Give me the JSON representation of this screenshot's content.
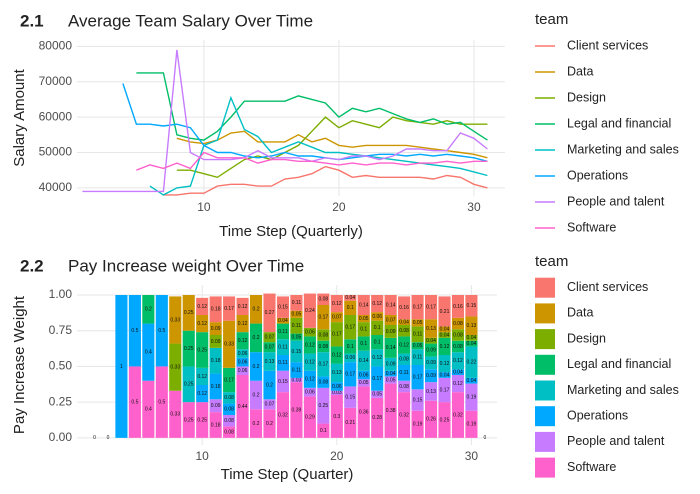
{
  "chart_data": [
    {
      "type": "line",
      "label": "2.1",
      "title": "Average Team Salary Over Time",
      "x_label": "Time Step (Quarterly)",
      "y_label": "Salary Amount",
      "legend_title": "team",
      "grid": true,
      "x": [
        1,
        2,
        3,
        4,
        5,
        6,
        7,
        8,
        9,
        10,
        11,
        12,
        13,
        14,
        15,
        16,
        17,
        18,
        19,
        20,
        21,
        22,
        23,
        24,
        25,
        26,
        27,
        28,
        29,
        30,
        31
      ],
      "xlim": [
        0.6,
        32.3
      ],
      "xticks": [
        10,
        20,
        30
      ],
      "ylim": [
        37700,
        81800
      ],
      "yticks": [
        40000,
        50000,
        60000,
        70000,
        80000
      ],
      "series": [
        {
          "name": "Client services",
          "color": "#F8766D",
          "values": [
            null,
            null,
            null,
            null,
            null,
            null,
            38000,
            38000,
            38500,
            38500,
            40500,
            41000,
            41000,
            40500,
            40500,
            42500,
            43000,
            44000,
            46000,
            45000,
            43000,
            43500,
            43000,
            43000,
            43000,
            43000,
            42500,
            43500,
            43000,
            41000,
            40000
          ]
        },
        {
          "name": "Data",
          "color": "#CD9600",
          "values": [
            null,
            null,
            null,
            null,
            null,
            null,
            null,
            54000,
            53000,
            52500,
            53500,
            55500,
            56000,
            53000,
            53000,
            53000,
            55000,
            53000,
            54000,
            52000,
            51500,
            52000,
            52000,
            52000,
            52000,
            51500,
            51000,
            50500,
            50000,
            49500,
            48500
          ]
        },
        {
          "name": "Design",
          "color": "#7CAE00",
          "values": [
            null,
            null,
            null,
            null,
            null,
            null,
            null,
            45000,
            45000,
            44000,
            43000,
            45500,
            48000,
            49000,
            48000,
            50000,
            52000,
            56000,
            60000,
            57000,
            59000,
            58000,
            57000,
            60000,
            59000,
            58500,
            58000,
            59000,
            58000,
            58000,
            58000
          ]
        },
        {
          "name": "Legal and financial",
          "color": "#00BE67",
          "values": [
            null,
            null,
            null,
            null,
            72500,
            72500,
            72500,
            55000,
            54000,
            53500,
            56000,
            60000,
            64500,
            64500,
            64500,
            64500,
            66000,
            65000,
            64000,
            60000,
            62500,
            61500,
            62500,
            61000,
            59500,
            58500,
            59500,
            58000,
            58500,
            56000,
            53500
          ]
        },
        {
          "name": "Marketing and sales",
          "color": "#00BFC4",
          "values": [
            null,
            null,
            null,
            null,
            null,
            40500,
            38000,
            40000,
            40500,
            52000,
            53500,
            65500,
            56500,
            54500,
            50000,
            51500,
            53000,
            51500,
            50000,
            50000,
            49500,
            49000,
            48500,
            48000,
            47500,
            47000,
            46500,
            46000,
            45500,
            44500,
            43500
          ]
        },
        {
          "name": "Operations",
          "color": "#00A9FF",
          "values": [
            null,
            null,
            null,
            69500,
            58000,
            58000,
            57500,
            58000,
            57000,
            52000,
            50000,
            50000,
            49000,
            48500,
            49000,
            50000,
            49000,
            49000,
            48500,
            48000,
            48500,
            49000,
            49500,
            49500,
            49000,
            49500,
            49000,
            49500,
            49000,
            48500,
            47500
          ]
        },
        {
          "name": "People and talent",
          "color": "#C77CFF",
          "values": [
            39000,
            39000,
            39000,
            39000,
            39000,
            39000,
            39000,
            79000,
            50000,
            48000,
            48000,
            48000,
            48500,
            50500,
            48500,
            48500,
            48500,
            47500,
            48500,
            48000,
            49000,
            49000,
            48000,
            49000,
            51000,
            51000,
            50500,
            50500,
            55500,
            54000,
            51000
          ]
        },
        {
          "name": "Software",
          "color": "#FF61CC",
          "values": [
            null,
            null,
            null,
            null,
            45000,
            46500,
            45500,
            47000,
            45500,
            50000,
            48500,
            48500,
            48500,
            47000,
            48000,
            48000,
            47500,
            47500,
            47000,
            46500,
            47000,
            46500,
            47000,
            47000,
            46500,
            47000,
            47000,
            47500,
            47000,
            47500,
            47500
          ]
        }
      ]
    },
    {
      "type": "bar",
      "stacked": true,
      "label": "2.2",
      "title": "Pay Increase weight Over Time",
      "x_label": "Time Step (Quarter)",
      "y_label": "Pay Increase Weight",
      "legend_title": "team",
      "grid": true,
      "x": [
        2,
        3,
        4,
        5,
        6,
        7,
        8,
        9,
        10,
        11,
        12,
        13,
        14,
        15,
        16,
        17,
        18,
        19,
        20,
        21,
        22,
        23,
        24,
        25,
        26,
        27,
        28,
        29,
        30,
        31
      ],
      "xlim": [
        0.7,
        31.9
      ],
      "xticks": [
        10,
        20,
        30
      ],
      "ylim": [
        -0.05,
        1.07
      ],
      "yticks": [
        {
          "value": 0,
          "label": "0.00"
        },
        {
          "value": 0.25,
          "label": "0.25"
        },
        {
          "value": 0.5,
          "label": "0.50"
        },
        {
          "value": 0.75,
          "label": "0.75"
        },
        {
          "value": 1,
          "label": "1.00"
        }
      ],
      "series": [
        {
          "name": "Client services",
          "color": "#F8766D",
          "values": [
            null,
            null,
            null,
            null,
            null,
            null,
            null,
            null,
            0.12,
            0.18,
            0.17,
            0.12,
            null,
            0.27,
            0.15,
            0.11,
            0.24,
            0.08,
            0.12,
            0.04,
            0.14,
            0.12,
            0.14,
            0.16,
            0.17,
            0.17,
            0.21,
            0.16,
            0.15,
            null
          ]
        },
        {
          "name": "Data",
          "color": "#CD9600",
          "values": [
            null,
            null,
            null,
            null,
            null,
            null,
            0.33,
            0.25,
            0.12,
            0.09,
            0.33,
            0.12,
            0.2,
            null,
            0.04,
            0.05,
            null,
            0.17,
            0.07,
            0.1,
            0.05,
            0.06,
            0.07,
            0.04,
            0.05,
            0.13,
            0.04,
            0.08,
            0.13,
            null
          ]
        },
        {
          "name": "Design",
          "color": "#7CAE00",
          "values": [
            null,
            null,
            null,
            null,
            null,
            null,
            0.33,
            null,
            null,
            0.09,
            null,
            null,
            null,
            0.07,
            null,
            0.11,
            0.06,
            0.08,
            0.17,
            0.17,
            0.1,
            0.1,
            0.09,
            0.08,
            0.11,
            0.04,
            0.04,
            0.08,
            0.04,
            null
          ]
        },
        {
          "name": "Legal and financial",
          "color": "#00BE67",
          "values": [
            null,
            null,
            null,
            null,
            0.2,
            null,
            null,
            0.25,
            0.25,
            null,
            0.17,
            0.12,
            0.2,
            0.07,
            0.11,
            0.05,
            0.12,
            0.08,
            0.12,
            0.1,
            0.1,
            0.1,
            0.14,
            0.12,
            0.05,
            0.09,
            0.12,
            0.08,
            0.04,
            null
          ]
        },
        {
          "name": "Marketing and sales",
          "color": "#00BFC4",
          "values": [
            null,
            null,
            null,
            null,
            null,
            null,
            null,
            0.25,
            0.12,
            0.18,
            0.08,
            0.06,
            null,
            0.13,
            0.11,
            0.15,
            0.12,
            0.17,
            0.13,
            0.06,
            0.14,
            0.12,
            0.09,
            0.08,
            0.11,
            0.09,
            0.12,
            0.12,
            0.22,
            null
          ]
        },
        {
          "name": "Operations",
          "color": "#00A9FF",
          "values": [
            null,
            null,
            1,
            0.5,
            0.4,
            0.5,
            null,
            null,
            0.12,
            0.18,
            0.08,
            0.06,
            0.2,
            0.2,
            0.11,
            0.11,
            0.12,
            0.08,
            0.06,
            0.17,
            0.06,
            0.17,
            0.04,
            0.11,
            0.17,
            0.09,
            0.04,
            0.04,
            0.04,
            null
          ]
        },
        {
          "name": "People and talent",
          "color": "#C77CFF",
          "values": [
            null,
            null,
            null,
            null,
            null,
            null,
            null,
            null,
            null,
            0.09,
            0.08,
            0.06,
            0.2,
            0.07,
            0.15,
            0.03,
            0.06,
            0.25,
            0.03,
            0.15,
            0.05,
            0.05,
            0.05,
            0.08,
            0.15,
            0.13,
            0.17,
            0.12,
            0.19,
            null
          ]
        },
        {
          "name": "Software",
          "color": "#FF61CC",
          "values": [
            0,
            0,
            null,
            0.5,
            0.4,
            0.5,
            0.33,
            0.25,
            0.25,
            0.18,
            0.08,
            0.44,
            0.2,
            0.2,
            0.32,
            0.39,
            0.29,
            0.1,
            0.3,
            0.21,
            0.36,
            0.28,
            0.38,
            0.32,
            0.19,
            0.26,
            0.25,
            0.32,
            0.19,
            0
          ]
        }
      ]
    }
  ]
}
